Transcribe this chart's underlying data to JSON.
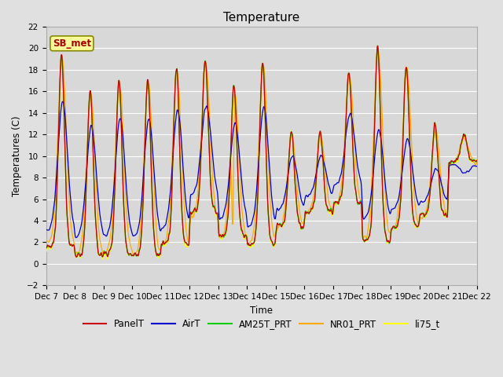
{
  "title": "Temperature",
  "ylabel": "Temperatures (C)",
  "xlabel": "Time",
  "ylim": [
    -2,
    22
  ],
  "yticks": [
    -2,
    0,
    2,
    4,
    6,
    8,
    10,
    12,
    14,
    16,
    18,
    20,
    22
  ],
  "xtick_labels": [
    "Dec 7",
    "Dec 8",
    "Dec 9",
    "Dec 10",
    "Dec 11",
    "Dec 12",
    "Dec 13",
    "Dec 14",
    "Dec 15",
    "Dec 16",
    "Dec 17",
    "Dec 18",
    "Dec 19",
    "Dec 20",
    "Dec 21",
    "Dec 22"
  ],
  "series_colors": {
    "PanelT": "#cc0000",
    "AirT": "#0000cc",
    "AM25T_PRT": "#00cc00",
    "NR01_PRT": "#ffaa00",
    "li75_t": "#ffff00"
  },
  "legend_label": "SB_met",
  "bg_color": "#e0e0e0",
  "plot_bg_color": "#d8d8d8",
  "grid_color": "#ffffff",
  "annotation_box_facecolor": "#ffff99",
  "annotation_text_color": "#aa0000",
  "annotation_border_color": "#888800",
  "figsize": [
    6.4,
    4.8
  ],
  "dpi": 100
}
